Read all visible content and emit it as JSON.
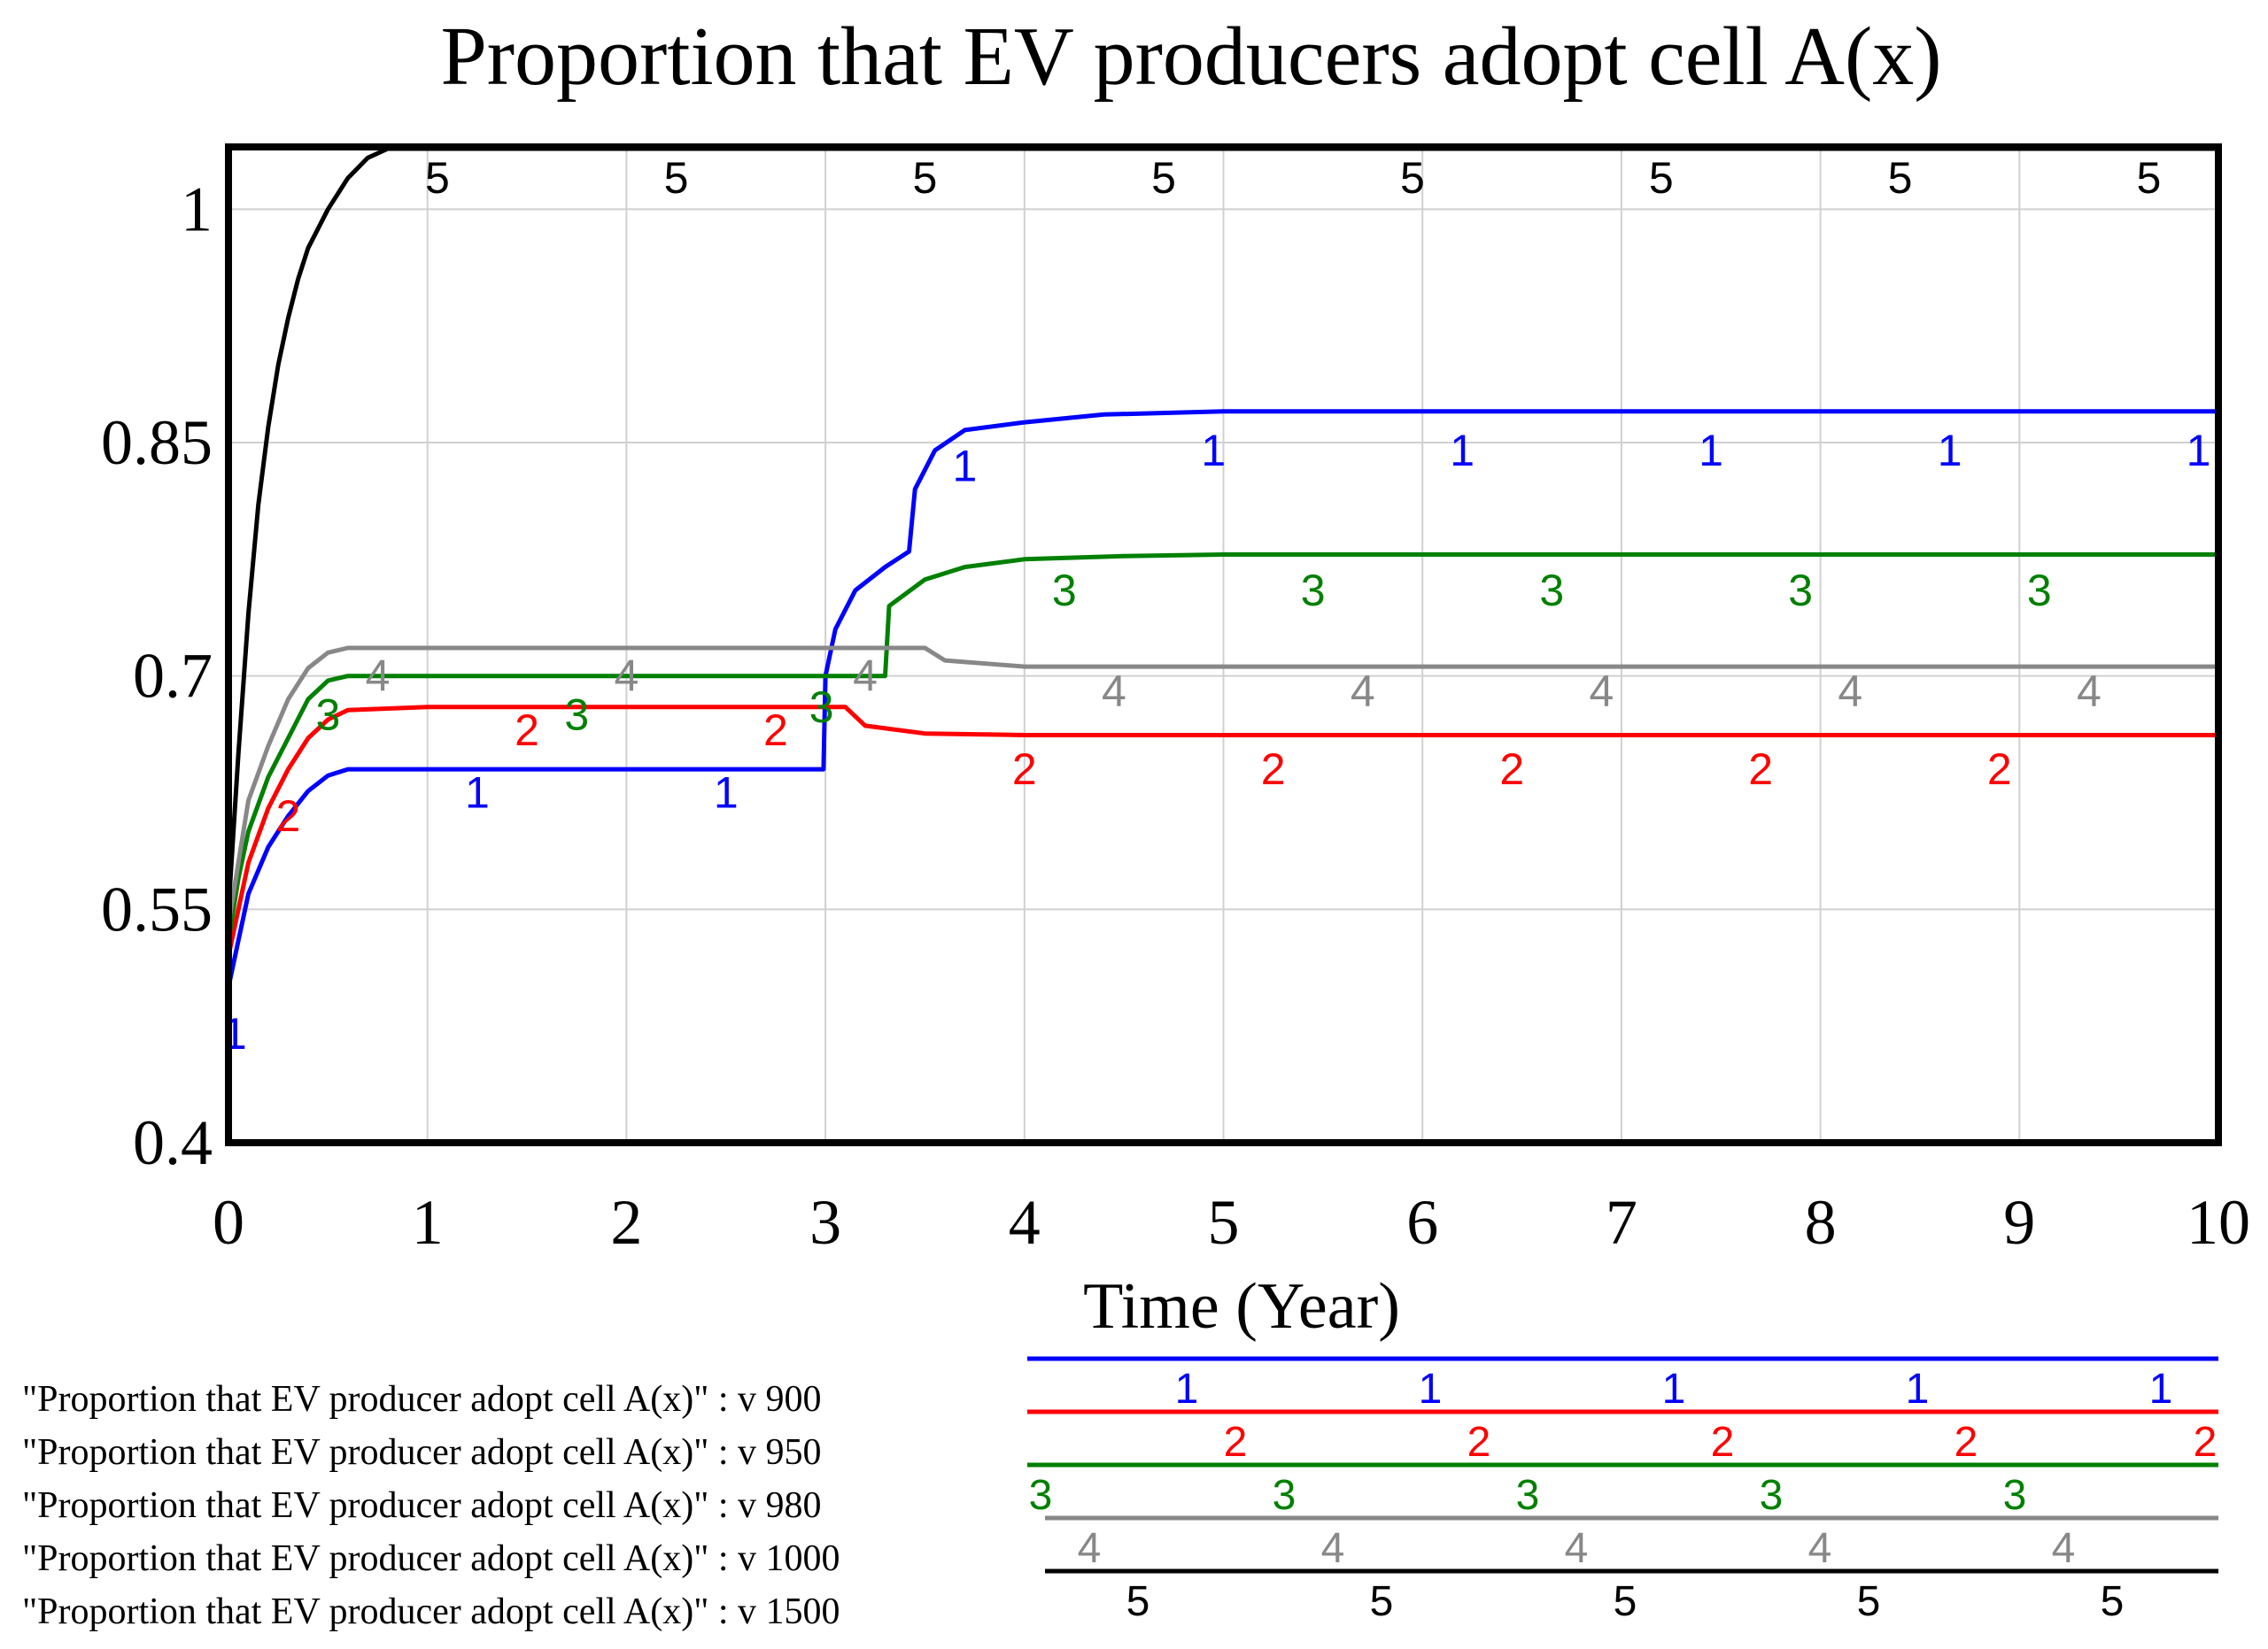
{
  "chart_data": {
    "type": "line",
    "title": "Proportion that EV producers adopt cell A(x)",
    "xlabel": "Time (Year)",
    "ylabel": "",
    "xlim": [
      0,
      10
    ],
    "ylim": [
      0.4,
      1.04
    ],
    "x_ticks": [
      "0",
      "1",
      "2",
      "3",
      "4",
      "5",
      "6",
      "7",
      "8",
      "9",
      "10"
    ],
    "y_ticks": [
      {
        "value": 0.4,
        "label": "0.4"
      },
      {
        "value": 0.55,
        "label": "0.55"
      },
      {
        "value": 0.7,
        "label": "0.7"
      },
      {
        "value": 0.85,
        "label": "0.85"
      },
      {
        "value": 1.0,
        "label": "1"
      }
    ],
    "grid": true,
    "legend_position": "bottom",
    "series": [
      {
        "id": "1",
        "name": "\"Proportion that EV producer adopt cell A(x)\" : v 900",
        "color": "#0000ff",
        "points": [
          [
            0,
            0.5
          ],
          [
            0.05,
            0.53
          ],
          [
            0.1,
            0.56
          ],
          [
            0.2,
            0.59
          ],
          [
            0.3,
            0.61
          ],
          [
            0.4,
            0.626
          ],
          [
            0.5,
            0.636
          ],
          [
            0.6,
            0.64
          ],
          [
            1,
            0.64
          ],
          [
            2,
            0.64
          ],
          [
            2.99,
            0.64
          ],
          [
            3.0,
            0.7
          ],
          [
            3.05,
            0.73
          ],
          [
            3.15,
            0.755
          ],
          [
            3.3,
            0.77
          ],
          [
            3.42,
            0.78
          ],
          [
            3.45,
            0.82
          ],
          [
            3.55,
            0.845
          ],
          [
            3.7,
            0.858
          ],
          [
            4.0,
            0.863
          ],
          [
            4.4,
            0.868
          ],
          [
            5,
            0.87
          ],
          [
            10,
            0.87
          ]
        ],
        "markers": [
          [
            0.03,
            0.47
          ],
          [
            1.25,
            0.625
          ],
          [
            2.5,
            0.625
          ],
          [
            3.7,
            0.835
          ],
          [
            4.95,
            0.845
          ],
          [
            6.2,
            0.845
          ],
          [
            7.45,
            0.845
          ],
          [
            8.65,
            0.845
          ],
          [
            9.9,
            0.845
          ]
        ]
      },
      {
        "id": "2",
        "name": "\"Proportion that EV producer adopt cell A(x)\" : v 950",
        "color": "#ff0000",
        "points": [
          [
            0,
            0.52
          ],
          [
            0.05,
            0.55
          ],
          [
            0.1,
            0.58
          ],
          [
            0.2,
            0.615
          ],
          [
            0.3,
            0.64
          ],
          [
            0.4,
            0.66
          ],
          [
            0.5,
            0.672
          ],
          [
            0.6,
            0.678
          ],
          [
            1,
            0.68
          ],
          [
            2,
            0.68
          ],
          [
            3.1,
            0.68
          ],
          [
            3.2,
            0.668
          ],
          [
            3.5,
            0.663
          ],
          [
            4,
            0.662
          ],
          [
            10,
            0.662
          ]
        ],
        "markers": [
          [
            0.3,
            0.61
          ],
          [
            1.5,
            0.665
          ],
          [
            2.75,
            0.665
          ],
          [
            4.0,
            0.64
          ],
          [
            5.25,
            0.64
          ],
          [
            6.45,
            0.64
          ],
          [
            7.7,
            0.64
          ],
          [
            8.9,
            0.64
          ]
        ]
      },
      {
        "id": "3",
        "name": "\"Proportion that EV producer adopt cell A(x)\" : v 980",
        "color": "#008000",
        "points": [
          [
            0,
            0.53
          ],
          [
            0.05,
            0.57
          ],
          [
            0.1,
            0.6
          ],
          [
            0.2,
            0.635
          ],
          [
            0.3,
            0.66
          ],
          [
            0.4,
            0.685
          ],
          [
            0.5,
            0.697
          ],
          [
            0.6,
            0.7
          ],
          [
            1,
            0.7
          ],
          [
            2,
            0.7
          ],
          [
            3.3,
            0.7
          ],
          [
            3.32,
            0.745
          ],
          [
            3.5,
            0.762
          ],
          [
            3.7,
            0.77
          ],
          [
            4,
            0.775
          ],
          [
            4.5,
            0.777
          ],
          [
            5,
            0.778
          ],
          [
            10,
            0.778
          ]
        ],
        "markers": [
          [
            0.5,
            0.675
          ],
          [
            1.75,
            0.675
          ],
          [
            2.98,
            0.68
          ],
          [
            4.2,
            0.755
          ],
          [
            5.45,
            0.755
          ],
          [
            6.65,
            0.755
          ],
          [
            7.9,
            0.755
          ],
          [
            9.1,
            0.755
          ]
        ]
      },
      {
        "id": "4",
        "name": "\"Proportion that EV producer adopt cell A(x)\" : v 1000",
        "color": "#888888",
        "points": [
          [
            0,
            0.54
          ],
          [
            0.05,
            0.58
          ],
          [
            0.1,
            0.62
          ],
          [
            0.2,
            0.655
          ],
          [
            0.3,
            0.685
          ],
          [
            0.4,
            0.705
          ],
          [
            0.5,
            0.715
          ],
          [
            0.6,
            0.718
          ],
          [
            1,
            0.718
          ],
          [
            2,
            0.718
          ],
          [
            3.5,
            0.718
          ],
          [
            3.6,
            0.71
          ],
          [
            4,
            0.706
          ],
          [
            10,
            0.706
          ]
        ],
        "markers": [
          [
            0.75,
            0.7
          ],
          [
            2.0,
            0.7
          ],
          [
            3.2,
            0.7
          ],
          [
            4.45,
            0.69
          ],
          [
            5.7,
            0.69
          ],
          [
            6.9,
            0.69
          ],
          [
            8.15,
            0.69
          ],
          [
            9.35,
            0.69
          ]
        ]
      },
      {
        "id": "5",
        "name": "\"Proportion that EV producer adopt cell A(x)\" : v 1500",
        "color": "#000000",
        "points": [
          [
            0,
            0.55
          ],
          [
            0.05,
            0.65
          ],
          [
            0.1,
            0.74
          ],
          [
            0.15,
            0.81
          ],
          [
            0.2,
            0.86
          ],
          [
            0.25,
            0.9
          ],
          [
            0.3,
            0.93
          ],
          [
            0.35,
            0.955
          ],
          [
            0.4,
            0.975
          ],
          [
            0.5,
            1.0
          ],
          [
            0.6,
            1.02
          ],
          [
            0.7,
            1.033
          ],
          [
            0.8,
            1.04
          ],
          [
            10,
            1.04
          ]
        ],
        "markers": [
          [
            1.05,
            1.02
          ],
          [
            2.25,
            1.02
          ],
          [
            3.5,
            1.02
          ],
          [
            4.7,
            1.02
          ],
          [
            5.95,
            1.02
          ],
          [
            7.2,
            1.02
          ],
          [
            8.4,
            1.02
          ],
          [
            9.65,
            1.02
          ]
        ]
      }
    ]
  }
}
